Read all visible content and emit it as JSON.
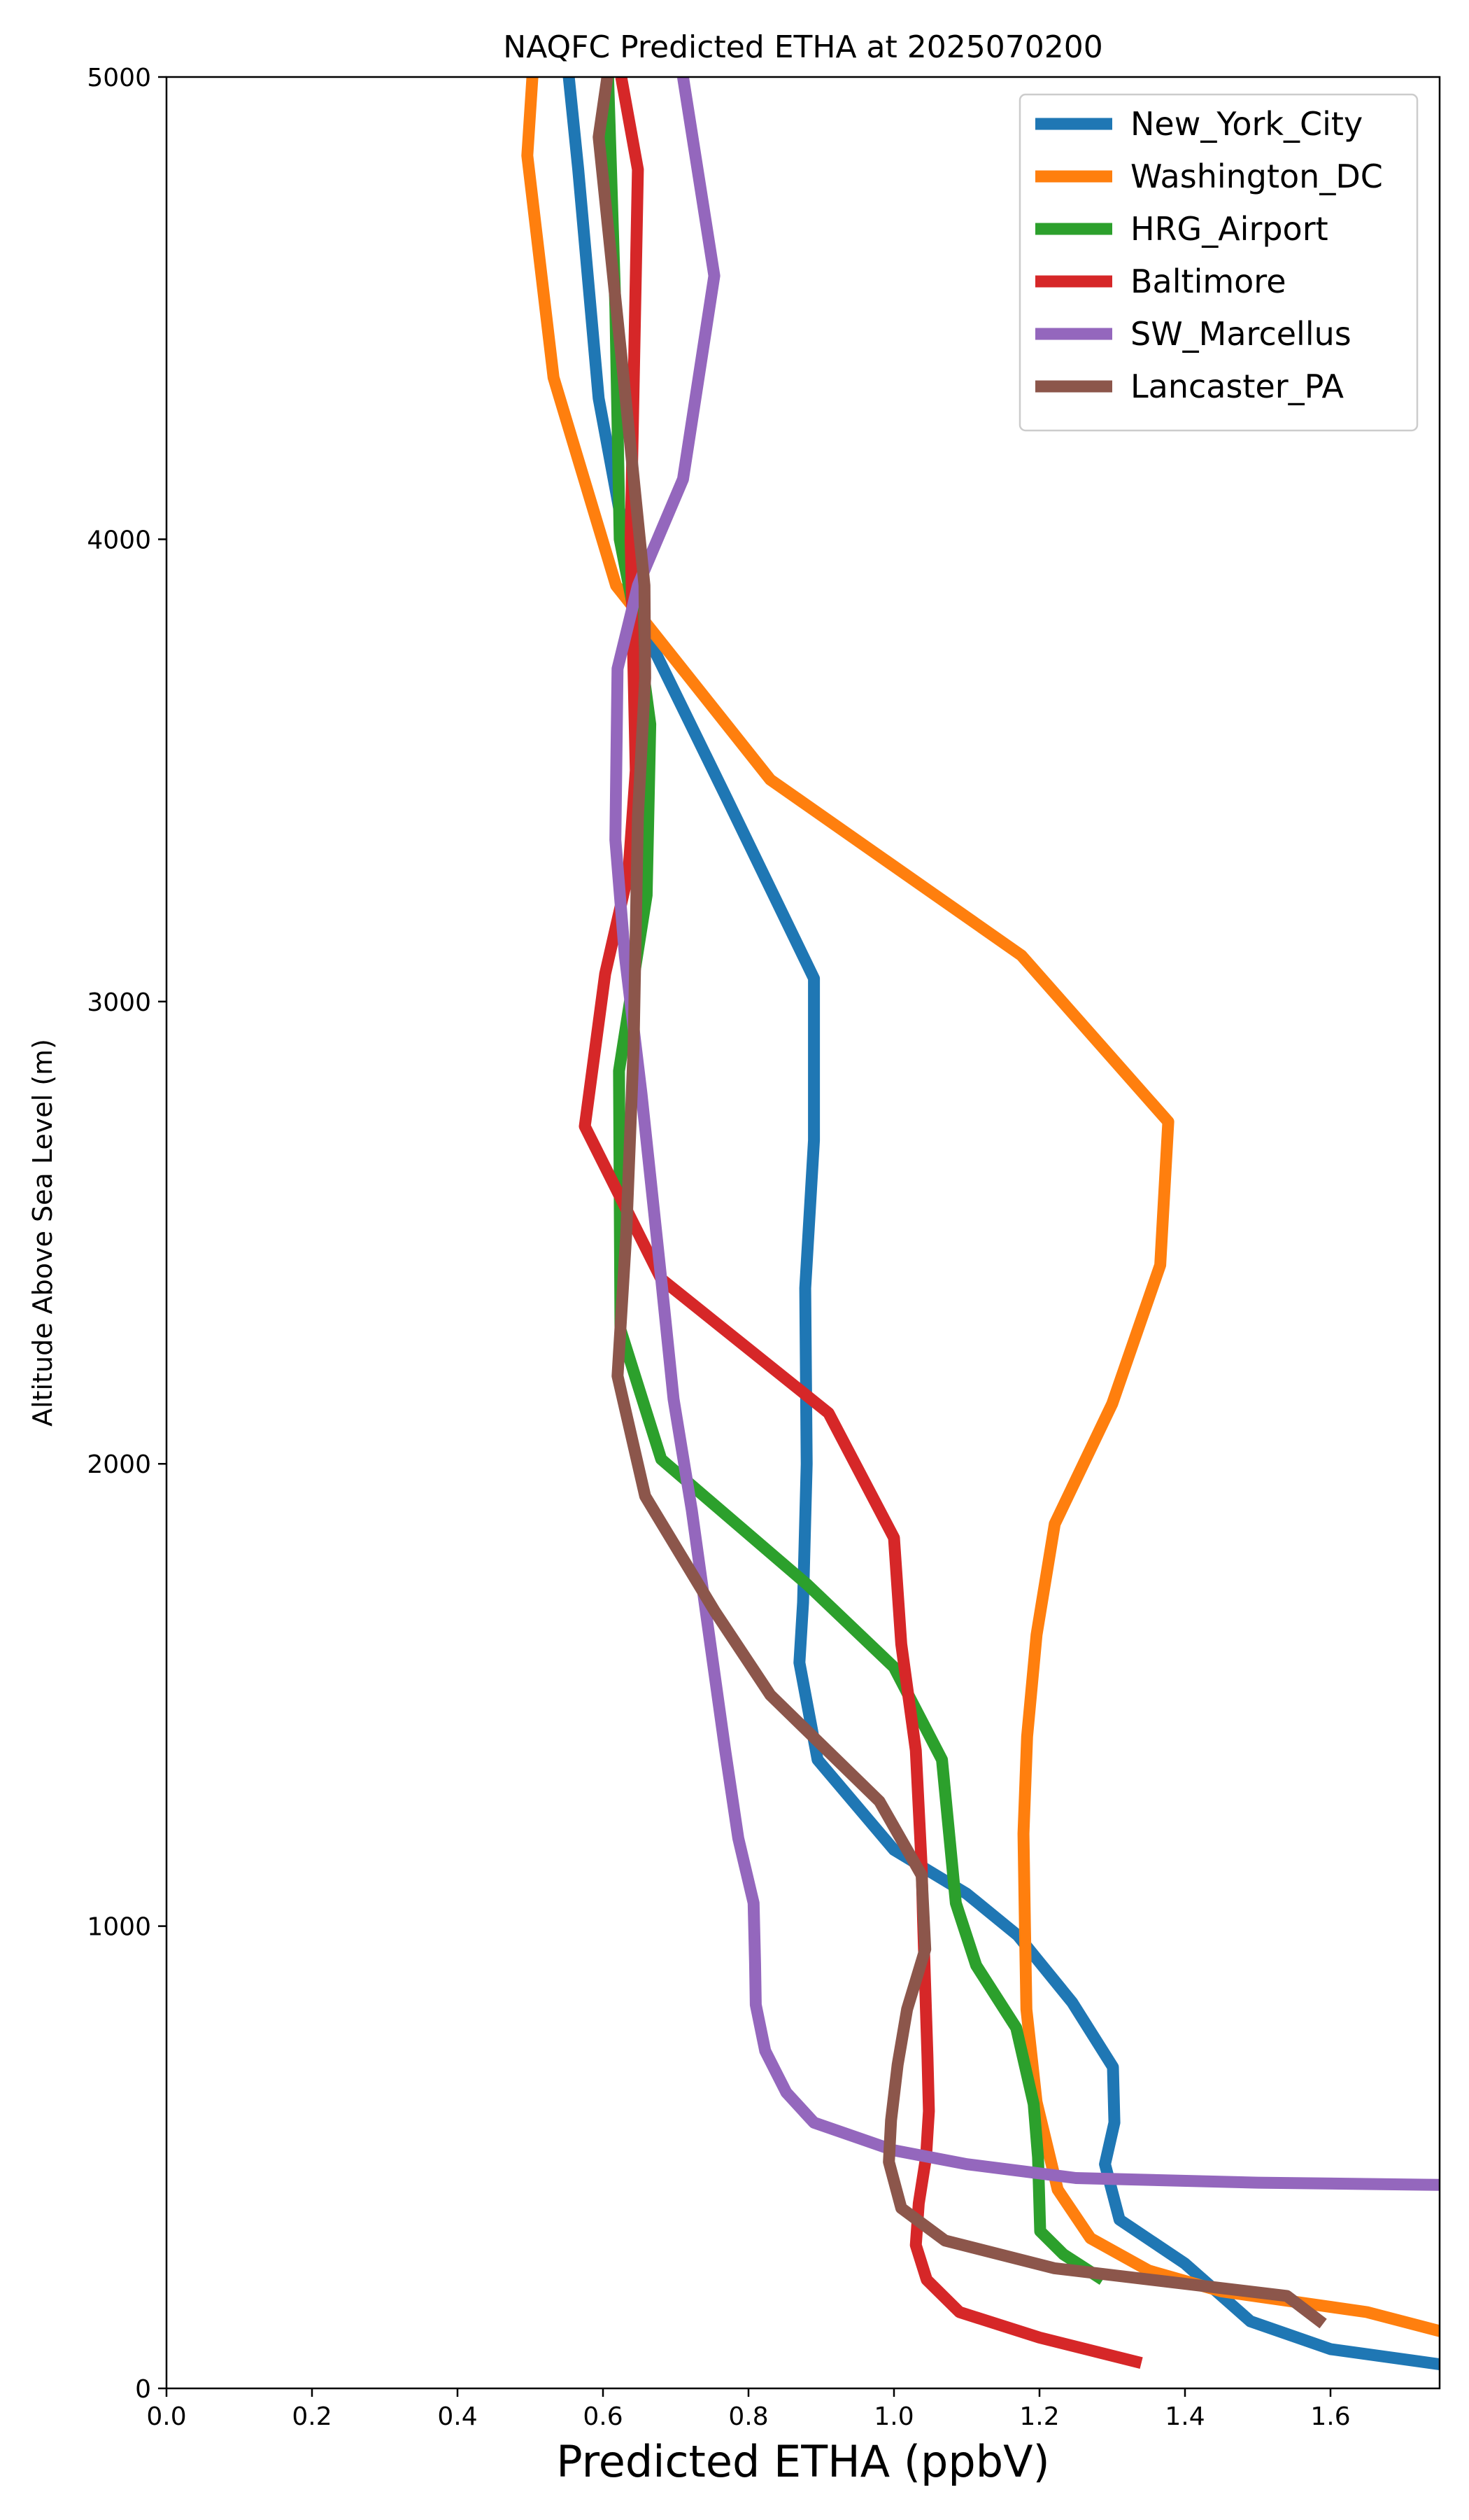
{
  "chart_data": {
    "type": "line",
    "title": "NAQFC Predicted ETHA at 2025070200",
    "xlabel": "Predicted ETHA (ppbV)",
    "ylabel": "Altitude Above Sea Level (m)",
    "xlim": [
      0,
      1.75
    ],
    "ylim": [
      0,
      5000
    ],
    "xticks": [
      "0.0",
      "0.2",
      "0.4",
      "0.6",
      "0.8",
      "1.0",
      "1.2",
      "1.4",
      "1.6"
    ],
    "yticks": [
      "0",
      "1000",
      "2000",
      "3000",
      "4000",
      "5000"
    ],
    "grid": false,
    "legend_position": "top-right",
    "series": [
      {
        "name": "New_York_City",
        "color": "#1f77b4",
        "points": [
          [
            1.76,
            50
          ],
          [
            1.6,
            85
          ],
          [
            1.49,
            145
          ],
          [
            1.4,
            270
          ],
          [
            1.31,
            365
          ],
          [
            1.29,
            485
          ],
          [
            1.303,
            575
          ],
          [
            1.301,
            695
          ],
          [
            1.245,
            835
          ],
          [
            1.17,
            980
          ],
          [
            1.1,
            1070
          ],
          [
            1.0,
            1165
          ],
          [
            0.895,
            1360
          ],
          [
            0.87,
            1570
          ],
          [
            0.875,
            1700
          ],
          [
            0.88,
            2000
          ],
          [
            0.878,
            2380
          ],
          [
            0.89,
            2700
          ],
          [
            0.89,
            3050
          ],
          [
            0.77,
            3440
          ],
          [
            0.655,
            3810
          ],
          [
            0.63,
            4000
          ],
          [
            0.594,
            4305
          ],
          [
            0.566,
            4800
          ],
          [
            0.553,
            5000
          ]
        ]
      },
      {
        "name": "Washington_DC",
        "color": "#ff7f0e",
        "points": [
          [
            1.76,
            120
          ],
          [
            1.65,
            165
          ],
          [
            1.45,
            210
          ],
          [
            1.35,
            255
          ],
          [
            1.27,
            325
          ],
          [
            1.225,
            430
          ],
          [
            1.196,
            620
          ],
          [
            1.182,
            820
          ],
          [
            1.18,
            1000
          ],
          [
            1.178,
            1200
          ],
          [
            1.183,
            1410
          ],
          [
            1.196,
            1630
          ],
          [
            1.221,
            1870
          ],
          [
            1.3,
            2130
          ],
          [
            1.366,
            2430
          ],
          [
            1.377,
            2740
          ],
          [
            1.175,
            3100
          ],
          [
            0.83,
            3480
          ],
          [
            0.618,
            3900
          ],
          [
            0.532,
            4350
          ],
          [
            0.496,
            4830
          ],
          [
            0.503,
            5000
          ]
        ]
      },
      {
        "name": "HRG_Airport",
        "color": "#2ca02c",
        "points": [
          [
            1.287,
            235
          ],
          [
            1.233,
            290
          ],
          [
            1.201,
            340
          ],
          [
            1.198,
            500
          ],
          [
            1.192,
            615
          ],
          [
            1.168,
            780
          ],
          [
            1.113,
            915
          ],
          [
            1.085,
            1050
          ],
          [
            1.066,
            1360
          ],
          [
            1.0,
            1560
          ],
          [
            0.88,
            1740
          ],
          [
            0.68,
            2010
          ],
          [
            0.624,
            2290
          ],
          [
            0.622,
            2850
          ],
          [
            0.66,
            3230
          ],
          [
            0.665,
            3600
          ],
          [
            0.648,
            3800
          ],
          [
            0.623,
            4000
          ],
          [
            0.617,
            4500
          ],
          [
            0.607,
            5000
          ]
        ]
      },
      {
        "name": "Baltimore",
        "color": "#d62728",
        "points": [
          [
            1.34,
            55
          ],
          [
            1.2,
            110
          ],
          [
            1.09,
            165
          ],
          [
            1.045,
            235
          ],
          [
            1.03,
            310
          ],
          [
            1.034,
            400
          ],
          [
            1.044,
            500
          ],
          [
            1.048,
            600
          ],
          [
            1.046,
            720
          ],
          [
            1.04,
            1010
          ],
          [
            1.038,
            1130
          ],
          [
            1.03,
            1380
          ],
          [
            1.01,
            1610
          ],
          [
            1.0,
            1840
          ],
          [
            0.91,
            2110
          ],
          [
            0.68,
            2400
          ],
          [
            0.575,
            2730
          ],
          [
            0.603,
            3060
          ],
          [
            0.635,
            3280
          ],
          [
            0.645,
            3500
          ],
          [
            0.638,
            4000
          ],
          [
            0.648,
            4800
          ],
          [
            0.625,
            5000
          ]
        ]
      },
      {
        "name": "SW_Marcellus",
        "color": "#9467bd",
        "points": [
          [
            1.76,
            440
          ],
          [
            1.5,
            445
          ],
          [
            1.25,
            455
          ],
          [
            1.1,
            485
          ],
          [
            1.0,
            515
          ],
          [
            0.89,
            575
          ],
          [
            0.852,
            640
          ],
          [
            0.823,
            730
          ],
          [
            0.81,
            830
          ],
          [
            0.809,
            920
          ],
          [
            0.807,
            1050
          ],
          [
            0.786,
            1190
          ],
          [
            0.768,
            1380
          ],
          [
            0.744,
            1650
          ],
          [
            0.722,
            1900
          ],
          [
            0.697,
            2140
          ],
          [
            0.68,
            2400
          ],
          [
            0.653,
            2800
          ],
          [
            0.63,
            3100
          ],
          [
            0.617,
            3350
          ],
          [
            0.62,
            3720
          ],
          [
            0.648,
            3900
          ],
          [
            0.71,
            4130
          ],
          [
            0.753,
            4570
          ],
          [
            0.71,
            5000
          ]
        ]
      },
      {
        "name": "Lancaster_PA",
        "color": "#8c564b",
        "points": [
          [
            1.59,
            140
          ],
          [
            1.54,
            200
          ],
          [
            1.22,
            260
          ],
          [
            1.07,
            320
          ],
          [
            1.01,
            390
          ],
          [
            0.993,
            490
          ],
          [
            0.996,
            580
          ],
          [
            1.005,
            700
          ],
          [
            1.018,
            820
          ],
          [
            1.043,
            950
          ],
          [
            1.038,
            1110
          ],
          [
            0.98,
            1270
          ],
          [
            0.83,
            1500
          ],
          [
            0.754,
            1680
          ],
          [
            0.658,
            1930
          ],
          [
            0.62,
            2190
          ],
          [
            0.632,
            2500
          ],
          [
            0.642,
            2900
          ],
          [
            0.648,
            3400
          ],
          [
            0.658,
            3700
          ],
          [
            0.657,
            3900
          ],
          [
            0.625,
            4400
          ],
          [
            0.594,
            4870
          ],
          [
            0.606,
            5000
          ]
        ]
      }
    ]
  }
}
